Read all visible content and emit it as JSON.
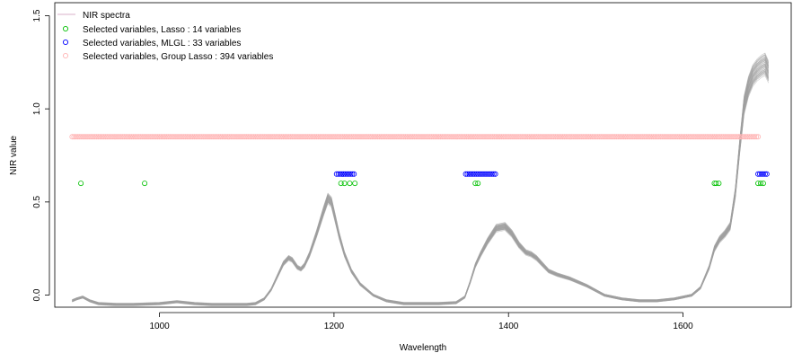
{
  "chart_data": {
    "type": "line",
    "title": "",
    "xlabel": "Wavelength",
    "ylabel": "NIR value",
    "xlim": [
      880,
      1724
    ],
    "ylim": [
      -0.065,
      1.57
    ],
    "x_ticks": [
      1000,
      1200,
      1400,
      1600
    ],
    "x_tick_labels": [
      "1000",
      "1200",
      "1400",
      "1600"
    ],
    "y_ticks": [
      0.0,
      0.5,
      1.0,
      1.5
    ],
    "y_tick_labels": [
      "0.0",
      "0.5",
      "1.0",
      "1.5"
    ],
    "grid": false,
    "legend_position": "top-left",
    "spectra": {
      "name": "NIR spectra",
      "color": "#a0a0a0",
      "legend_color": "#d8b0c8",
      "curve_count": 40,
      "x": [
        900,
        905,
        912,
        920,
        930,
        950,
        970,
        1000,
        1020,
        1040,
        1060,
        1080,
        1100,
        1110,
        1120,
        1128,
        1136,
        1142,
        1148,
        1152,
        1158,
        1162,
        1166,
        1172,
        1180,
        1188,
        1193,
        1197,
        1201,
        1206,
        1212,
        1220,
        1230,
        1245,
        1260,
        1280,
        1300,
        1320,
        1340,
        1350,
        1356,
        1362,
        1368,
        1376,
        1386,
        1396,
        1404,
        1412,
        1420,
        1426,
        1432,
        1438,
        1446,
        1456,
        1470,
        1490,
        1510,
        1530,
        1550,
        1570,
        1590,
        1600,
        1610,
        1620,
        1630,
        1636,
        1642,
        1648,
        1654,
        1660,
        1665,
        1670,
        1675,
        1680,
        1685,
        1690,
        1694,
        1698
      ],
      "y": [
        -0.03,
        -0.02,
        -0.01,
        -0.03,
        -0.045,
        -0.05,
        -0.05,
        -0.045,
        -0.035,
        -0.045,
        -0.05,
        -0.05,
        -0.05,
        -0.045,
        -0.02,
        0.03,
        0.11,
        0.17,
        0.2,
        0.19,
        0.15,
        0.14,
        0.16,
        0.22,
        0.33,
        0.45,
        0.52,
        0.5,
        0.42,
        0.32,
        0.22,
        0.13,
        0.06,
        0.0,
        -0.03,
        -0.045,
        -0.045,
        -0.045,
        -0.04,
        -0.01,
        0.07,
        0.16,
        0.22,
        0.29,
        0.36,
        0.37,
        0.33,
        0.27,
        0.23,
        0.22,
        0.2,
        0.17,
        0.13,
        0.11,
        0.09,
        0.05,
        0.0,
        -0.02,
        -0.03,
        -0.03,
        -0.02,
        -0.01,
        0.0,
        0.04,
        0.15,
        0.25,
        0.3,
        0.33,
        0.37,
        0.55,
        0.8,
        1.02,
        1.12,
        1.18,
        1.21,
        1.23,
        1.24,
        1.2
      ]
    },
    "series": [
      {
        "name": "Selected variables, Lasso : 14 variables",
        "color": "#00c000",
        "y": 0.6,
        "x": [
          910,
          983,
          1208,
          1212,
          1218,
          1224,
          1362,
          1365,
          1636,
          1638,
          1641,
          1686,
          1689,
          1692
        ]
      },
      {
        "name": "Selected variables, MLGL : 33 variables",
        "color": "#0000ff",
        "y": 0.65,
        "ranges": [
          [
            1203,
            1223
          ],
          [
            1351,
            1385
          ],
          [
            1686,
            1696
          ]
        ]
      },
      {
        "name": "Selected variables, Group Lasso : 394 variables",
        "color": "#ffb4b4",
        "y": 0.85,
        "ranges": [
          [
            900,
            1686
          ]
        ]
      }
    ]
  }
}
